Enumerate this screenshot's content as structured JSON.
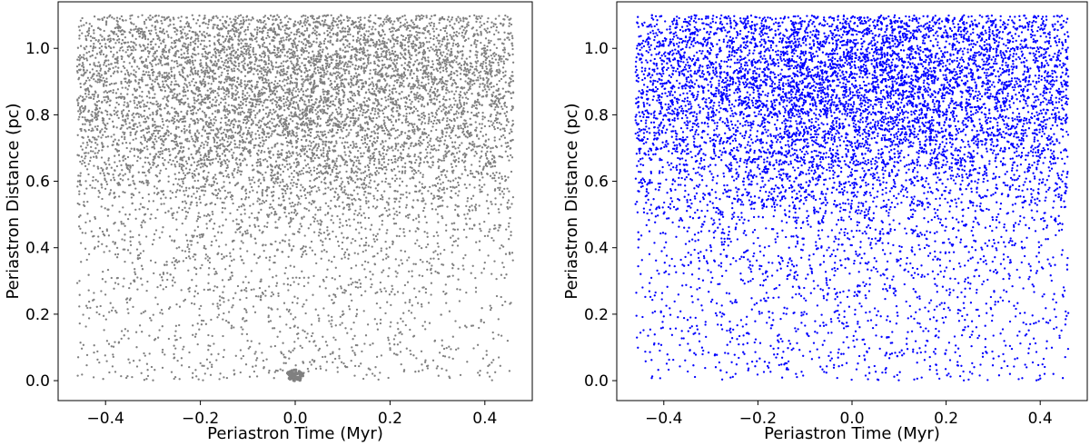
{
  "chart_data": [
    {
      "type": "scatter",
      "xlabel": "Periastron Time (Myr)",
      "ylabel": "Periastron Distance (pc)",
      "xlim": [
        -0.5,
        0.5
      ],
      "ylim": [
        -0.06,
        1.14
      ],
      "xticks": [
        -0.4,
        -0.2,
        0.0,
        0.2,
        0.4
      ],
      "yticks": [
        0.0,
        0.2,
        0.4,
        0.6,
        0.8,
        1.0
      ],
      "xtick_labels": [
        "−0.4",
        "−0.2",
        "0.0",
        "0.2",
        "0.4"
      ],
      "ytick_labels": [
        "0.0",
        "0.2",
        "0.4",
        "0.6",
        "0.8",
        "1.0"
      ],
      "marker_color": "#808080",
      "grid": false,
      "distribution": {
        "x_range": [
          -0.46,
          0.46
        ],
        "y_range": [
          0.0,
          1.1
        ],
        "approx_points": 9000,
        "density_peak_y": 0.9,
        "central_clump": {
          "x": 0.0,
          "y": 0.015,
          "approx_points": 60
        }
      }
    },
    {
      "type": "scatter",
      "xlabel": "Periastron Time (Myr)",
      "ylabel": "Periastron Distance (pc)",
      "xlim": [
        -0.5,
        0.5
      ],
      "ylim": [
        -0.06,
        1.14
      ],
      "xticks": [
        -0.4,
        -0.2,
        0.0,
        0.2,
        0.4
      ],
      "yticks": [
        0.0,
        0.2,
        0.4,
        0.6,
        0.8,
        1.0
      ],
      "xtick_labels": [
        "−0.4",
        "−0.2",
        "0.0",
        "0.2",
        "0.4"
      ],
      "ytick_labels": [
        "0.0",
        "0.2",
        "0.4",
        "0.6",
        "0.8",
        "1.0"
      ],
      "marker_color": "#0000ff",
      "grid": false,
      "distribution": {
        "x_range": [
          -0.46,
          0.46
        ],
        "y_range": [
          0.0,
          1.1
        ],
        "approx_points": 9000,
        "density_peak_y": 0.9,
        "central_clump": null
      }
    }
  ]
}
